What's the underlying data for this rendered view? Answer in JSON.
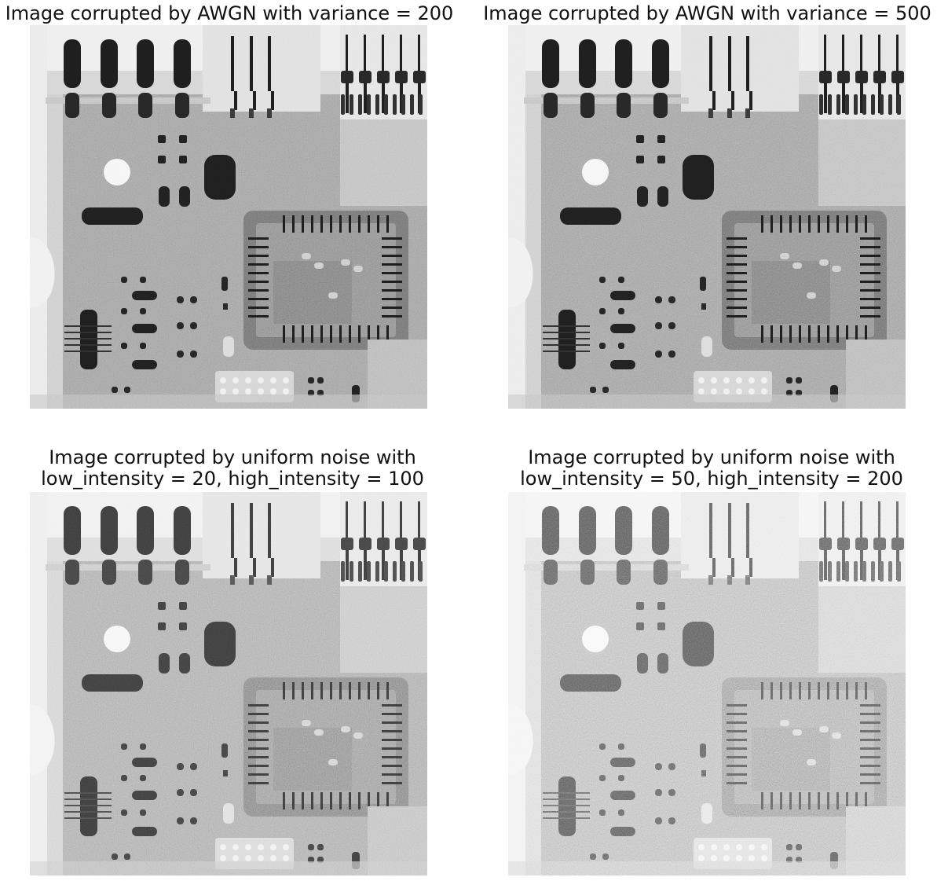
{
  "panels": [
    {
      "title": "Image corrupted by AWGN with variance = 200",
      "noise": "awgn",
      "level": 200
    },
    {
      "title": "Image corrupted by AWGN with variance = 500",
      "noise": "awgn",
      "level": 500
    },
    {
      "title": "Image corrupted by uniform noise with\nlow_intensity = 20, high_intensity = 100",
      "noise": "uniform",
      "level": [
        20,
        100
      ]
    },
    {
      "title": "Image corrupted by uniform noise with\nlow_intensity = 50, high_intensity = 200",
      "noise": "uniform",
      "level": [
        50,
        200
      ]
    }
  ]
}
